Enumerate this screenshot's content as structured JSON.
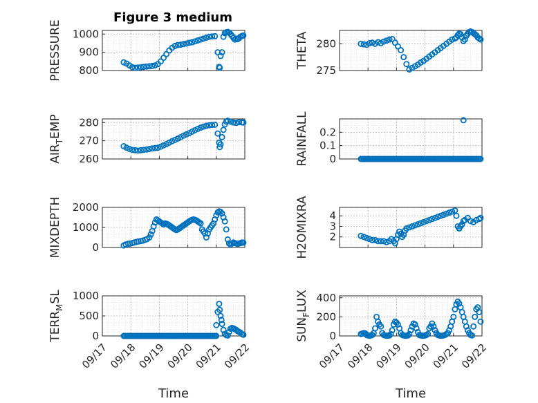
{
  "figure": {
    "title": "Figure 3 medium",
    "marker_color": "#0072BD",
    "x_tick_labels": [
      "09/17",
      "09/18",
      "09/19",
      "09/20",
      "09/21",
      "09/22"
    ],
    "x_label": "Time"
  },
  "chart_data": [
    {
      "type": "scatter",
      "marker": "circle-open",
      "grid": "dotted",
      "ylabel_main": "PRESSURE",
      "ylabel_sub": "",
      "xlim": [
        0,
        5
      ],
      "ylim": [
        800,
        1020
      ],
      "yticks": [
        800,
        900,
        1000
      ],
      "ytick_labels": [
        "800",
        "900",
        "1000"
      ],
      "x": [
        0.75,
        0.85,
        0.95,
        1.05,
        1.15,
        1.25,
        1.35,
        1.45,
        1.55,
        1.65,
        1.75,
        1.85,
        1.95,
        2.05,
        2.15,
        2.25,
        2.35,
        2.45,
        2.55,
        2.65,
        2.75,
        2.85,
        2.95,
        3.05,
        3.15,
        3.25,
        3.35,
        3.45,
        3.55,
        3.65,
        3.75,
        3.85,
        3.95,
        4.05,
        4.1,
        4.12,
        4.15,
        4.2,
        4.25,
        4.3,
        4.35,
        4.4,
        4.45,
        4.5,
        4.55,
        4.6,
        4.65,
        4.7,
        4.75,
        4.8,
        4.85,
        4.9,
        4.95
      ],
      "y": [
        845,
        838,
        828,
        818,
        815,
        816,
        818,
        820,
        822,
        823,
        825,
        828,
        835,
        850,
        870,
        890,
        910,
        925,
        935,
        940,
        942,
        945,
        948,
        952,
        955,
        960,
        965,
        970,
        975,
        980,
        985,
        987,
        988,
        900,
        820,
        815,
        880,
        900,
        985,
        1005,
        1010,
        1012,
        1008,
        1000,
        990,
        980,
        970,
        975,
        972,
        978,
        985,
        990,
        992
      ]
    },
    {
      "type": "scatter",
      "marker": "circle-open",
      "grid": "dotted",
      "ylabel_main": "THETA",
      "ylabel_sub": "",
      "xlim": [
        0,
        5
      ],
      "ylim": [
        275,
        282.5
      ],
      "yticks": [
        275,
        280
      ],
      "ytick_labels": [
        "275",
        "280"
      ],
      "x": [
        0.75,
        0.85,
        0.95,
        1.05,
        1.15,
        1.25,
        1.35,
        1.45,
        1.55,
        1.65,
        1.75,
        1.85,
        1.95,
        2.05,
        2.15,
        2.25,
        2.35,
        2.45,
        2.55,
        2.65,
        2.75,
        2.85,
        2.95,
        3.05,
        3.15,
        3.25,
        3.35,
        3.45,
        3.55,
        3.65,
        3.75,
        3.85,
        3.95,
        4.05,
        4.1,
        4.15,
        4.2,
        4.25,
        4.3,
        4.35,
        4.4,
        4.45,
        4.5,
        4.55,
        4.6,
        4.65,
        4.7,
        4.75,
        4.8,
        4.85,
        4.9,
        4.95
      ],
      "y": [
        280,
        279.9,
        279.8,
        280.1,
        280.2,
        280,
        280.3,
        280.1,
        280.4,
        280.6,
        280.8,
        280.9,
        280.2,
        279.5,
        278.8,
        277.5,
        276.2,
        275.2,
        275.5,
        275.8,
        276.1,
        276.5,
        276.8,
        277.2,
        277.6,
        278,
        278.4,
        278.8,
        279.2,
        279.6,
        280,
        280.4,
        280.8,
        281,
        281.2,
        281.6,
        281.9,
        281.8,
        281.2,
        280.5,
        280.8,
        281.5,
        281.9,
        282.2,
        282.3,
        282.2,
        282,
        281.8,
        281.6,
        281.2,
        281,
        280.8
      ]
    },
    {
      "type": "scatter",
      "marker": "circle-open",
      "grid": "dotted",
      "ylabel_main": "AIR",
      "ylabel_sub": "T",
      "ylabel_tail": "EMP",
      "xlim": [
        0,
        5
      ],
      "ylim": [
        260,
        282
      ],
      "yticks": [
        260,
        270,
        280
      ],
      "ytick_labels": [
        "260",
        "270",
        "280"
      ],
      "x": [
        0.75,
        0.85,
        0.95,
        1.05,
        1.15,
        1.25,
        1.35,
        1.45,
        1.55,
        1.65,
        1.75,
        1.85,
        1.95,
        2.05,
        2.15,
        2.25,
        2.35,
        2.45,
        2.55,
        2.65,
        2.75,
        2.85,
        2.95,
        3.05,
        3.15,
        3.25,
        3.35,
        3.45,
        3.55,
        3.65,
        3.75,
        3.85,
        3.95,
        4.05,
        4.1,
        4.12,
        4.15,
        4.2,
        4.25,
        4.3,
        4.35,
        4.4,
        4.5,
        4.6,
        4.7,
        4.8,
        4.9,
        4.95
      ],
      "y": [
        267,
        266.2,
        265.5,
        265,
        264.8,
        264.6,
        264.8,
        265,
        265.2,
        265.5,
        265.8,
        266,
        266.2,
        266.8,
        267.5,
        268.2,
        269,
        269.8,
        270.5,
        271.2,
        272,
        272.8,
        273.5,
        274.2,
        275,
        275.8,
        276.5,
        277.2,
        277.8,
        278.2,
        278.5,
        278.7,
        278.8,
        274,
        269,
        266.5,
        268,
        272,
        276,
        279,
        280.5,
        281,
        280.5,
        280,
        279.8,
        280.2,
        280.1,
        280
      ]
    },
    {
      "type": "scatter",
      "marker": "circle-open",
      "grid": "dotted",
      "ylabel_main": "RAINFALL",
      "ylabel_sub": "",
      "xlim": [
        0,
        5
      ],
      "ylim": [
        0,
        0.3
      ],
      "yticks": [
        0,
        0.1,
        0.2
      ],
      "ytick_labels": [
        "0",
        "0.1",
        "0.2"
      ],
      "x_range": [
        0.75,
        4.95
      ],
      "x_step": 0.05,
      "y_const": 0,
      "x": [
        4.35
      ],
      "y": [
        0.29
      ]
    },
    {
      "type": "scatter",
      "marker": "circle-open",
      "grid": "dotted",
      "ylabel_main": "MIXDEPTH",
      "ylabel_sub": "",
      "xlim": [
        0,
        5
      ],
      "ylim": [
        0,
        2000
      ],
      "yticks": [
        0,
        1000,
        2000
      ],
      "ytick_labels": [
        "0",
        "1000",
        "2000"
      ],
      "x": [
        0.75,
        0.82,
        0.9,
        0.97,
        1.05,
        1.12,
        1.2,
        1.27,
        1.35,
        1.42,
        1.5,
        1.57,
        1.65,
        1.7,
        1.75,
        1.8,
        1.85,
        1.9,
        1.95,
        2.0,
        2.05,
        2.1,
        2.15,
        2.2,
        2.25,
        2.3,
        2.35,
        2.4,
        2.45,
        2.5,
        2.55,
        2.6,
        2.65,
        2.7,
        2.75,
        2.8,
        2.85,
        2.9,
        2.95,
        3.0,
        3.05,
        3.1,
        3.15,
        3.2,
        3.25,
        3.3,
        3.35,
        3.4,
        3.45,
        3.5,
        3.55,
        3.6,
        3.65,
        3.7,
        3.75,
        3.8,
        3.85,
        3.9,
        3.95,
        4.0,
        4.05,
        4.1,
        4.15,
        4.2,
        4.25,
        4.3,
        4.35,
        4.4,
        4.45,
        4.5,
        4.55,
        4.6,
        4.65,
        4.7,
        4.75,
        4.8,
        4.85,
        4.9,
        4.95
      ],
      "y": [
        100,
        150,
        180,
        200,
        220,
        250,
        280,
        300,
        320,
        340,
        380,
        420,
        500,
        650,
        820,
        1050,
        1250,
        1400,
        1350,
        1300,
        1250,
        1200,
        1150,
        1200,
        1180,
        1150,
        1100,
        1050,
        1000,
        950,
        900,
        870,
        900,
        950,
        1000,
        1050,
        1100,
        1150,
        1200,
        1250,
        1300,
        1350,
        1380,
        1400,
        1380,
        1350,
        1300,
        1250,
        1200,
        900,
        800,
        700,
        500,
        700,
        900,
        1000,
        1100,
        1200,
        1400,
        1600,
        1750,
        1800,
        1780,
        1700,
        1500,
        1300,
        900,
        400,
        200,
        150,
        200,
        250,
        220,
        200,
        180,
        200,
        220,
        250,
        240
      ]
    },
    {
      "type": "scatter",
      "marker": "circle-open",
      "grid": "dotted",
      "ylabel_main": "H2OMIXRA",
      "ylabel_sub": "",
      "xlim": [
        0,
        5
      ],
      "ylim": [
        1,
        4.8
      ],
      "yticks": [
        2,
        3,
        4
      ],
      "ytick_labels": [
        "2",
        "3",
        "4"
      ],
      "x": [
        0.75,
        0.85,
        0.95,
        1.05,
        1.15,
        1.25,
        1.35,
        1.45,
        1.55,
        1.65,
        1.75,
        1.82,
        1.9,
        1.95,
        2.0,
        2.05,
        2.1,
        2.15,
        2.2,
        2.25,
        2.3,
        2.35,
        2.45,
        2.55,
        2.65,
        2.75,
        2.85,
        2.95,
        3.05,
        3.15,
        3.25,
        3.35,
        3.45,
        3.55,
        3.65,
        3.75,
        3.85,
        3.95,
        4.05,
        4.1,
        4.15,
        4.2,
        4.25,
        4.3,
        4.35,
        4.4,
        4.5,
        4.6,
        4.7,
        4.8,
        4.9,
        4.95
      ],
      "y": [
        2.1,
        2.0,
        1.9,
        1.8,
        1.7,
        1.7,
        1.6,
        1.6,
        1.6,
        1.5,
        1.6,
        1.8,
        1.6,
        1.4,
        1.8,
        2.2,
        2.5,
        2.3,
        2.0,
        2.2,
        2.6,
        2.8,
        2.9,
        3.0,
        3.1,
        3.2,
        3.3,
        3.4,
        3.5,
        3.6,
        3.7,
        3.8,
        3.9,
        4.0,
        4.1,
        4.2,
        4.3,
        4.4,
        4.5,
        4.0,
        3.0,
        2.8,
        3.0,
        3.2,
        3.5,
        3.6,
        3.8,
        3.5,
        3.4,
        3.6,
        3.7,
        3.8
      ]
    },
    {
      "type": "scatter",
      "marker": "circle-open",
      "grid": "dotted",
      "ylabel_main": "TERR",
      "ylabel_sub": "M",
      "ylabel_tail": "SL",
      "xlim": [
        0,
        5
      ],
      "ylim": [
        0,
        1000
      ],
      "yticks": [
        0,
        500,
        1000
      ],
      "ytick_labels": [
        "0",
        "500",
        "1000"
      ],
      "x_range": [
        0.75,
        4.0
      ],
      "x_step": 0.05,
      "y_const": 0,
      "x": [
        4.0,
        4.05,
        4.1,
        4.12,
        4.15,
        4.18,
        4.2,
        4.25,
        4.3,
        4.35,
        4.4,
        4.45,
        4.5,
        4.55,
        4.6,
        4.65,
        4.7,
        4.75,
        4.8,
        4.85,
        4.9,
        4.95
      ],
      "y": [
        270,
        600,
        800,
        650,
        500,
        400,
        300,
        150,
        50,
        20,
        10,
        100,
        180,
        200,
        190,
        170,
        150,
        120,
        100,
        80,
        50,
        30
      ]
    },
    {
      "type": "scatter",
      "marker": "circle-open",
      "grid": "dotted",
      "ylabel_main": "SUN",
      "ylabel_sub": "F",
      "ylabel_tail": "LUX",
      "xlim": [
        0,
        5
      ],
      "ylim": [
        0,
        420
      ],
      "yticks": [
        0,
        200,
        400
      ],
      "ytick_labels": [
        "0",
        "200",
        "400"
      ],
      "x": [
        0.75,
        0.8,
        0.85,
        0.9,
        0.95,
        1.0,
        1.05,
        1.1,
        1.15,
        1.2,
        1.25,
        1.3,
        1.35,
        1.4,
        1.45,
        1.5,
        1.55,
        1.6,
        1.65,
        1.7,
        1.75,
        1.8,
        1.85,
        1.9,
        1.95,
        2.0,
        2.05,
        2.1,
        2.15,
        2.2,
        2.25,
        2.3,
        2.35,
        2.4,
        2.45,
        2.5,
        2.55,
        2.6,
        2.65,
        2.7,
        2.75,
        2.8,
        2.85,
        2.9,
        2.95,
        3.0,
        3.05,
        3.1,
        3.15,
        3.2,
        3.25,
        3.3,
        3.35,
        3.4,
        3.45,
        3.5,
        3.55,
        3.6,
        3.65,
        3.7,
        3.75,
        3.8,
        3.85,
        3.9,
        3.95,
        4.0,
        4.05,
        4.1,
        4.15,
        4.2,
        4.25,
        4.3,
        4.35,
        4.4,
        4.45,
        4.5,
        4.55,
        4.6,
        4.65,
        4.7,
        4.75,
        4.8,
        4.85,
        4.9,
        4.95
      ],
      "y": [
        20,
        25,
        30,
        28,
        10,
        5,
        2,
        5,
        10,
        30,
        80,
        200,
        150,
        120,
        100,
        30,
        10,
        5,
        3,
        2,
        5,
        20,
        60,
        120,
        150,
        140,
        120,
        80,
        30,
        10,
        5,
        2,
        2,
        5,
        20,
        60,
        100,
        130,
        120,
        80,
        40,
        10,
        5,
        2,
        2,
        5,
        10,
        20,
        80,
        100,
        130,
        100,
        60,
        30,
        10,
        5,
        2,
        2,
        5,
        10,
        20,
        30,
        60,
        100,
        150,
        200,
        280,
        330,
        360,
        340,
        300,
        250,
        200,
        150,
        100,
        60,
        30,
        10,
        5,
        100,
        200,
        280,
        300,
        250,
        150
      ]
    }
  ]
}
